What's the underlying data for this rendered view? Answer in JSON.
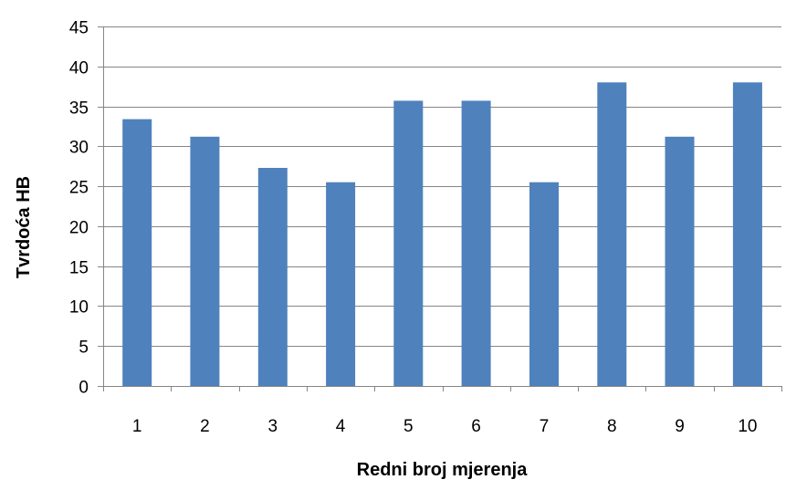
{
  "chart_data": {
    "type": "bar",
    "title": "",
    "xlabel": "Redni broj mjerenja",
    "ylabel": "Tvrdoća HB",
    "categories": [
      "1",
      "2",
      "3",
      "4",
      "5",
      "6",
      "7",
      "8",
      "9",
      "10"
    ],
    "values": [
      33.4,
      31.2,
      27.3,
      25.5,
      35.7,
      35.7,
      25.5,
      38.0,
      31.2,
      38.0
    ],
    "ylim": [
      0,
      45
    ],
    "yticks": [
      "0",
      "5",
      "10",
      "15",
      "20",
      "25",
      "30",
      "35",
      "40",
      "45"
    ],
    "ytick_values": [
      0,
      5,
      10,
      15,
      20,
      25,
      30,
      35,
      40,
      45
    ],
    "grid": "horizontal",
    "legend": "none",
    "bar_color": "#4F81BD",
    "grid_color": "#868686"
  }
}
